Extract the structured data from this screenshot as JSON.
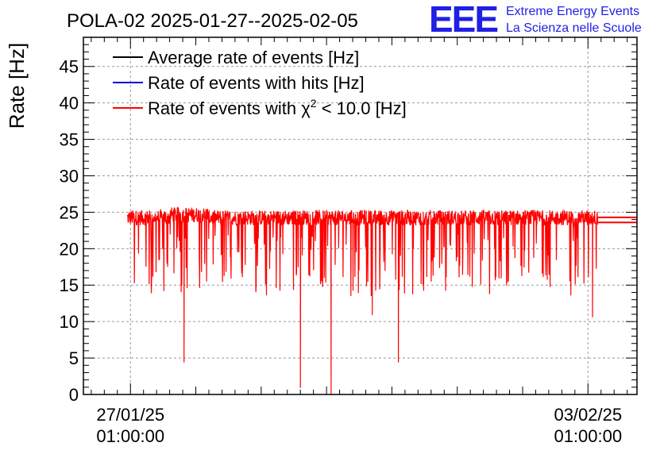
{
  "chart_data": {
    "type": "line",
    "title": "POLA-02 2025-01-27--2025-02-05",
    "ylabel": "Rate [Hz]",
    "xlabel": "",
    "ylim": [
      0,
      49
    ],
    "yticks": [
      0,
      5,
      10,
      15,
      20,
      25,
      30,
      35,
      40,
      45
    ],
    "xticks": [
      {
        "date": "27/01/25",
        "time": "01:00:00",
        "day": 0
      },
      {
        "date": "03/02/25",
        "time": "01:00:00",
        "day": 7
      }
    ],
    "xlim_days": [
      -0.72,
      7.75
    ],
    "grid": true,
    "legend_position": "top-left",
    "series": [
      {
        "name": "Average rate of events [Hz]",
        "color": "#000000"
      },
      {
        "name": "Rate of events with hits [Hz]",
        "color": "#0000cc"
      },
      {
        "name": "Rate of events with",
        "name_symbol": "χ",
        "name_sup": "2",
        "name_tail": " < 10.0 [Hz]",
        "color": "#ff0000"
      }
    ],
    "red_series_summary": {
      "day_start": -0.05,
      "day_end": 7.15,
      "typical_range": [
        22.5,
        25.5
      ],
      "dips": [
        {
          "day": 0.82,
          "value": 4.4
        },
        {
          "day": 2.6,
          "value": 0.9
        },
        {
          "day": 3.07,
          "value": 0.0
        },
        {
          "day": 3.7,
          "value": 10.9
        },
        {
          "day": 4.1,
          "value": 4.4
        },
        {
          "day": 7.07,
          "value": 10.6
        }
      ],
      "flat_segment": {
        "day_start": 7.15,
        "day_end": 7.75,
        "values": [
          24.3,
          23.6
        ]
      }
    },
    "header_logo": {
      "text": "EEE",
      "line1": "Extreme Energy Events",
      "line2": "La Scienza nelle Scuole"
    }
  }
}
